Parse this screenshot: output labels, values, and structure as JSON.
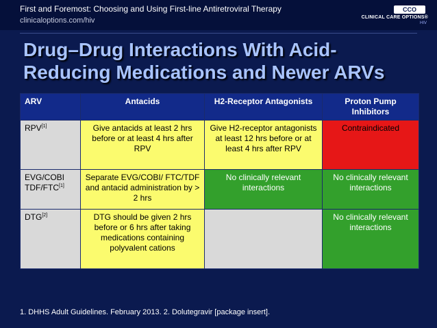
{
  "header": {
    "title": "First and Foremost: Choosing and Using First-line Antiretroviral Therapy",
    "url": "clinicaloptions.com/hiv"
  },
  "logo": {
    "mark": "CCO",
    "name": "CLINICAL CARE OPTIONS",
    "trademark": "®",
    "sub": "HIV"
  },
  "slide": {
    "title": "Drug–Drug Interactions With Acid-Reducing Medications and Newer ARVs"
  },
  "table": {
    "headers": [
      "ARV",
      "Antacids",
      "H2-Receptor Antagonists",
      "Proton Pump Inhibitors"
    ],
    "rows": [
      {
        "arv": "RPV",
        "ref": "[1]",
        "antacids": "Give antacids at least 2 hrs before or at least 4 hrs after RPV",
        "h2": "Give H2-receptor antagonists at least 12 hrs before or at least 4 hrs after RPV",
        "ppi": "Contraindicated"
      },
      {
        "arv": "EVG/COBI TDF/FTC",
        "ref": "[1]",
        "antacids": "Separate EVG/COBI/ FTC/TDF and antacid administration by > 2 hrs",
        "h2": "No clinically relevant interactions",
        "ppi": "No clinically relevant interactions"
      },
      {
        "arv": "DTG",
        "ref": "[2]",
        "antacids": "DTG should be given 2 hrs before or 6 hrs after taking medications containing polyvalent cations",
        "h2": "",
        "ppi": "No clinically relevant interactions"
      }
    ]
  },
  "footnote": "1. DHHS Adult Guidelines. February 2013. 2. Dolutegravir [package insert].",
  "colors": {
    "background": "#0b1a4f",
    "header_row": "#122a8a",
    "yellow": "#fbfb6e",
    "green": "#33a02c",
    "red": "#e61717",
    "gray": "#d9d9d9"
  }
}
